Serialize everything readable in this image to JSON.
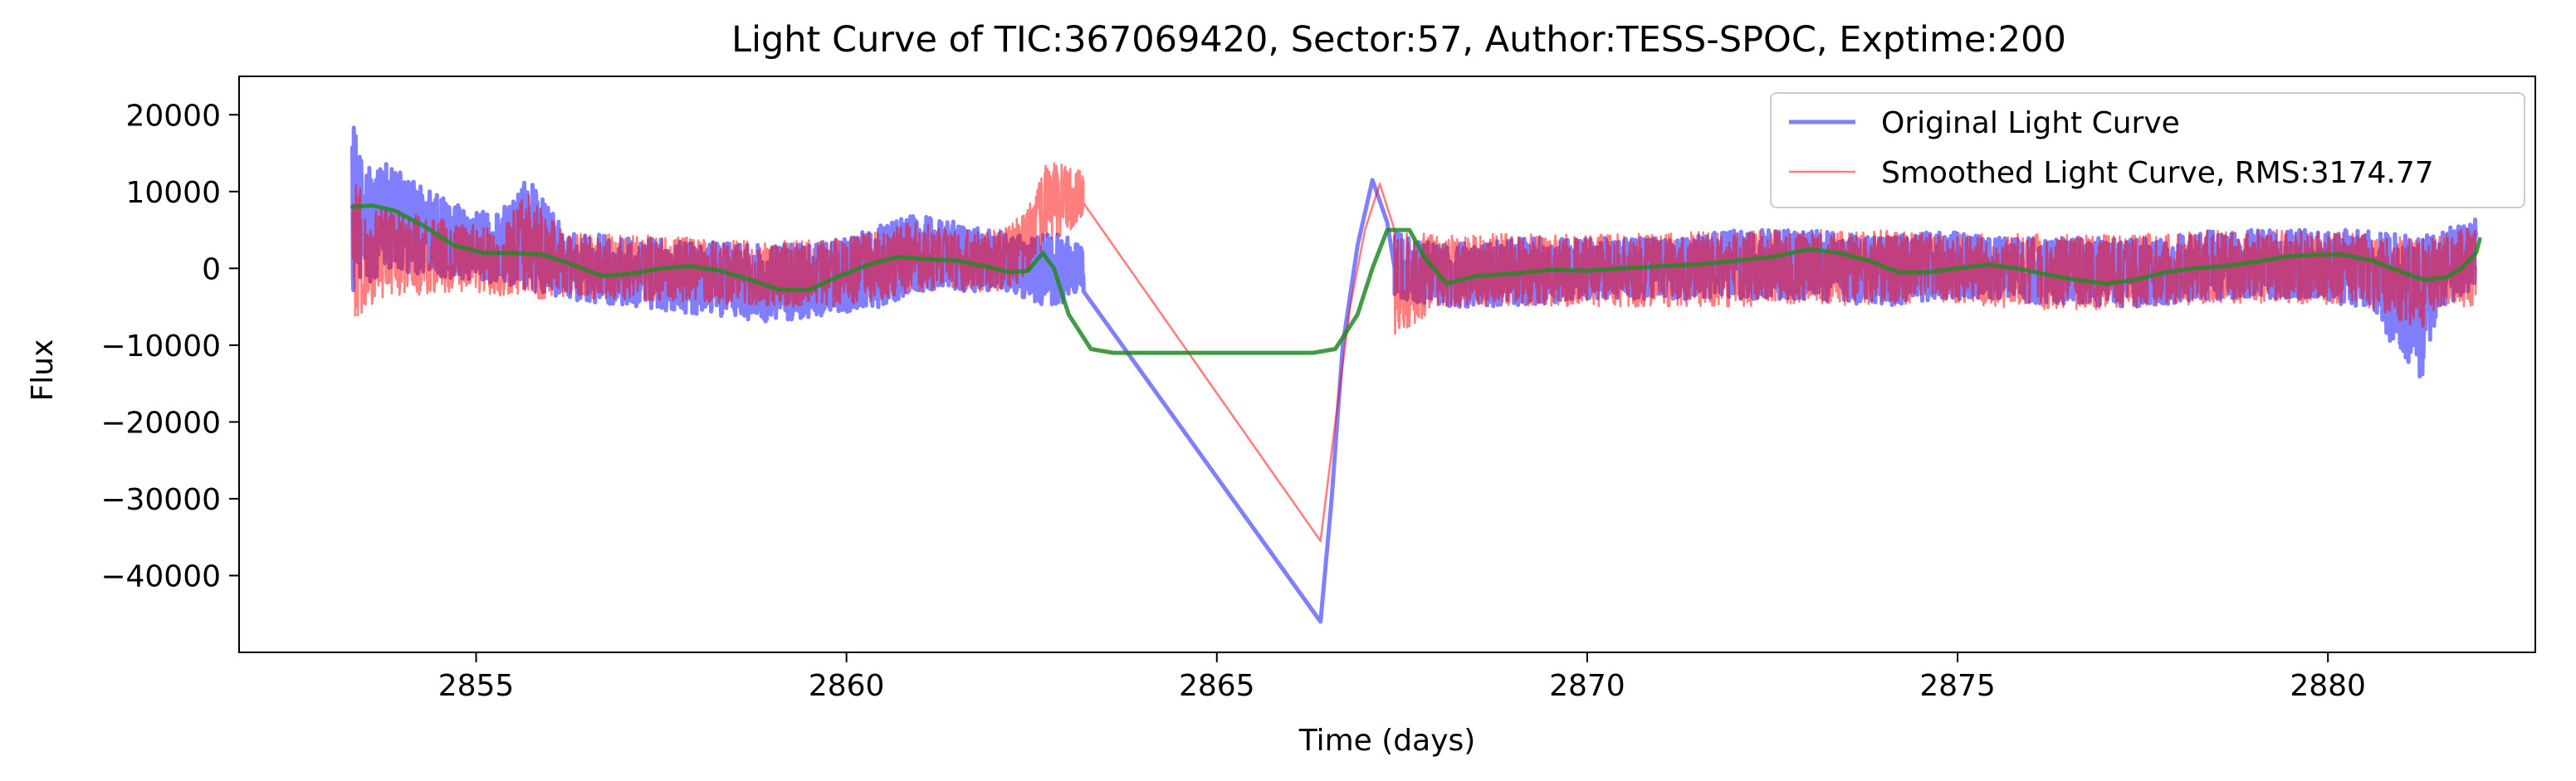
{
  "chart_data": {
    "type": "line",
    "title": "Light Curve of TIC:367069420, Sector:57, Author:TESS-SPOC, Exptime:200",
    "xlabel": "Time (days)",
    "ylabel": "Flux",
    "xlim": [
      2851.8,
      2882.8
    ],
    "ylim": [
      -50000,
      25000
    ],
    "xticks": [
      2855,
      2860,
      2865,
      2870,
      2875,
      2880
    ],
    "yticks": [
      20000,
      10000,
      0,
      -10000,
      -20000,
      -30000,
      -40000
    ],
    "ytick_labels": [
      "20000",
      "10000",
      "0",
      "−10000",
      "−20000",
      "−30000",
      "−40000"
    ],
    "grid": false,
    "legend_position": "top-right",
    "series": [
      {
        "name": "Original Light Curve",
        "color": "#0000ff",
        "alpha": 0.5,
        "line_width": "thick",
        "envelope": [
          [
            2853.33,
            -4000,
            22000
          ],
          [
            2853.5,
            -2000,
            13000
          ],
          [
            2853.8,
            -1000,
            14000
          ],
          [
            2854.2,
            -1000,
            11000
          ],
          [
            2854.8,
            -1500,
            8000
          ],
          [
            2855.3,
            -2000,
            7000
          ],
          [
            2855.7,
            -3000,
            12000
          ],
          [
            2856.2,
            -4000,
            5000
          ],
          [
            2857.0,
            -5000,
            4000
          ],
          [
            2858.0,
            -6000,
            3500
          ],
          [
            2859.0,
            -7000,
            3000
          ],
          [
            2859.8,
            -6000,
            3500
          ],
          [
            2860.5,
            -5000,
            6000
          ],
          [
            2860.9,
            -3000,
            7000
          ],
          [
            2861.5,
            -3000,
            6000
          ],
          [
            2862.0,
            -3000,
            5000
          ],
          [
            2862.5,
            -4000,
            4000
          ],
          [
            2862.8,
            -6000,
            5000
          ],
          [
            2863.2,
            -2000,
            3000
          ]
        ],
        "envelope_right": [
          [
            2867.4,
            -4000,
            5000
          ],
          [
            2868.0,
            -5000,
            3000
          ],
          [
            2869.0,
            -5000,
            4000
          ],
          [
            2870.0,
            -4000,
            4000
          ],
          [
            2871.0,
            -4000,
            4000
          ],
          [
            2872.0,
            -4000,
            5000
          ],
          [
            2873.0,
            -4000,
            5000
          ],
          [
            2874.0,
            -5000,
            4000
          ],
          [
            2874.7,
            -4000,
            5000
          ],
          [
            2875.5,
            -4000,
            4000
          ],
          [
            2876.5,
            -5000,
            4000
          ],
          [
            2877.5,
            -5000,
            4000
          ],
          [
            2878.5,
            -4000,
            5000
          ],
          [
            2879.5,
            -4000,
            5000
          ],
          [
            2880.5,
            -5000,
            5000
          ],
          [
            2881.25,
            -15000,
            4000
          ],
          [
            2881.5,
            -5000,
            5000
          ],
          [
            2882.0,
            -3000,
            6500
          ]
        ],
        "path": [
          [
            2863.2,
            -3000
          ],
          [
            2866.4,
            -46000
          ],
          [
            2866.55,
            -30000
          ],
          [
            2866.7,
            -10000
          ],
          [
            2866.9,
            3000
          ],
          [
            2867.1,
            11500
          ],
          [
            2867.3,
            6000
          ],
          [
            2867.4,
            0
          ]
        ]
      },
      {
        "name": "Smoothed Light Curve, RMS:3174.77",
        "color": "#ff0000",
        "alpha": 0.5,
        "line_width": "thin",
        "envelope": [
          [
            2853.33,
            -9000,
            14000
          ],
          [
            2853.5,
            -5000,
            8000
          ],
          [
            2853.8,
            -4000,
            8000
          ],
          [
            2854.2,
            -3500,
            7000
          ],
          [
            2854.8,
            -3000,
            6000
          ],
          [
            2855.3,
            -3500,
            5000
          ],
          [
            2855.7,
            -4000,
            10000
          ],
          [
            2856.2,
            -4000,
            4500
          ],
          [
            2857.0,
            -4000,
            4500
          ],
          [
            2858.0,
            -4500,
            4000
          ],
          [
            2859.0,
            -5000,
            3500
          ],
          [
            2859.8,
            -5000,
            4000
          ],
          [
            2860.5,
            -4000,
            5000
          ],
          [
            2860.9,
            -3000,
            6000
          ],
          [
            2861.5,
            -3000,
            5000
          ],
          [
            2862.0,
            -3000,
            5000
          ],
          [
            2862.4,
            -2000,
            7000
          ],
          [
            2862.7,
            3000,
            14000
          ],
          [
            2863.2,
            6000,
            13000
          ]
        ],
        "envelope_right": [
          [
            2867.4,
            -9000,
            5000
          ],
          [
            2868.0,
            -5000,
            4500
          ],
          [
            2869.0,
            -5000,
            4500
          ],
          [
            2870.0,
            -5000,
            4500
          ],
          [
            2871.0,
            -5000,
            4500
          ],
          [
            2872.0,
            -5000,
            5000
          ],
          [
            2873.0,
            -4500,
            5000
          ],
          [
            2874.0,
            -5000,
            5000
          ],
          [
            2874.7,
            -4500,
            4500
          ],
          [
            2875.5,
            -5000,
            4500
          ],
          [
            2876.5,
            -5500,
            4500
          ],
          [
            2877.5,
            -5000,
            4500
          ],
          [
            2878.5,
            -4500,
            5000
          ],
          [
            2879.5,
            -4500,
            5000
          ],
          [
            2880.5,
            -5000,
            4500
          ],
          [
            2881.25,
            -8000,
            4000
          ],
          [
            2881.5,
            -5000,
            4500
          ],
          [
            2882.0,
            -5000,
            5500
          ]
        ],
        "path": [
          [
            2863.2,
            8500
          ],
          [
            2866.4,
            -35500
          ],
          [
            2866.6,
            -20000
          ],
          [
            2866.8,
            -5000
          ],
          [
            2867.0,
            5000
          ],
          [
            2867.2,
            11000
          ],
          [
            2867.4,
            5000
          ]
        ]
      },
      {
        "name": "",
        "color": "#228b22",
        "alpha": 0.85,
        "line_width": "thick",
        "points": [
          [
            2853.33,
            8000
          ],
          [
            2853.6,
            8200
          ],
          [
            2853.9,
            7500
          ],
          [
            2854.3,
            5500
          ],
          [
            2854.7,
            3000
          ],
          [
            2855.1,
            2000
          ],
          [
            2855.5,
            2000
          ],
          [
            2855.9,
            1800
          ],
          [
            2856.3,
            500
          ],
          [
            2856.7,
            -1000
          ],
          [
            2857.1,
            -700
          ],
          [
            2857.5,
            0
          ],
          [
            2857.9,
            300
          ],
          [
            2858.3,
            -300
          ],
          [
            2858.7,
            -1500
          ],
          [
            2859.1,
            -2800
          ],
          [
            2859.5,
            -2800
          ],
          [
            2859.9,
            -1000
          ],
          [
            2860.3,
            500
          ],
          [
            2860.7,
            1500
          ],
          [
            2861.1,
            1200
          ],
          [
            2861.5,
            1000
          ],
          [
            2861.9,
            200
          ],
          [
            2862.2,
            -500
          ],
          [
            2862.45,
            -300
          ],
          [
            2862.65,
            2000
          ],
          [
            2862.8,
            0
          ],
          [
            2863.0,
            -6000
          ],
          [
            2863.3,
            -10500
          ],
          [
            2863.6,
            -11000
          ],
          [
            2864.5,
            -11000
          ],
          [
            2865.5,
            -11000
          ],
          [
            2866.3,
            -11000
          ],
          [
            2866.6,
            -10500
          ],
          [
            2866.9,
            -6000
          ],
          [
            2867.1,
            0
          ],
          [
            2867.3,
            5000
          ],
          [
            2867.6,
            5000
          ],
          [
            2867.8,
            1500
          ],
          [
            2868.1,
            -2000
          ],
          [
            2868.5,
            -1000
          ],
          [
            2869.0,
            -700
          ],
          [
            2869.5,
            -200
          ],
          [
            2870.0,
            -300
          ],
          [
            2870.5,
            0
          ],
          [
            2871.0,
            300
          ],
          [
            2871.5,
            500
          ],
          [
            2872.0,
            1000
          ],
          [
            2872.5,
            1500
          ],
          [
            2873.0,
            2500
          ],
          [
            2873.4,
            2000
          ],
          [
            2873.8,
            1000
          ],
          [
            2874.2,
            -500
          ],
          [
            2874.6,
            -500
          ],
          [
            2875.0,
            0
          ],
          [
            2875.4,
            500
          ],
          [
            2875.8,
            0
          ],
          [
            2876.2,
            -800
          ],
          [
            2876.6,
            -1500
          ],
          [
            2877.0,
            -2000
          ],
          [
            2877.4,
            -1500
          ],
          [
            2877.8,
            -500
          ],
          [
            2878.2,
            0
          ],
          [
            2878.6,
            300
          ],
          [
            2879.0,
            800
          ],
          [
            2879.4,
            1500
          ],
          [
            2879.8,
            1800
          ],
          [
            2880.2,
            1800
          ],
          [
            2880.6,
            1000
          ],
          [
            2881.0,
            -500
          ],
          [
            2881.3,
            -1500
          ],
          [
            2881.6,
            -1200
          ],
          [
            2881.8,
            0
          ],
          [
            2882.0,
            2000
          ],
          [
            2882.05,
            3800
          ]
        ]
      }
    ]
  }
}
